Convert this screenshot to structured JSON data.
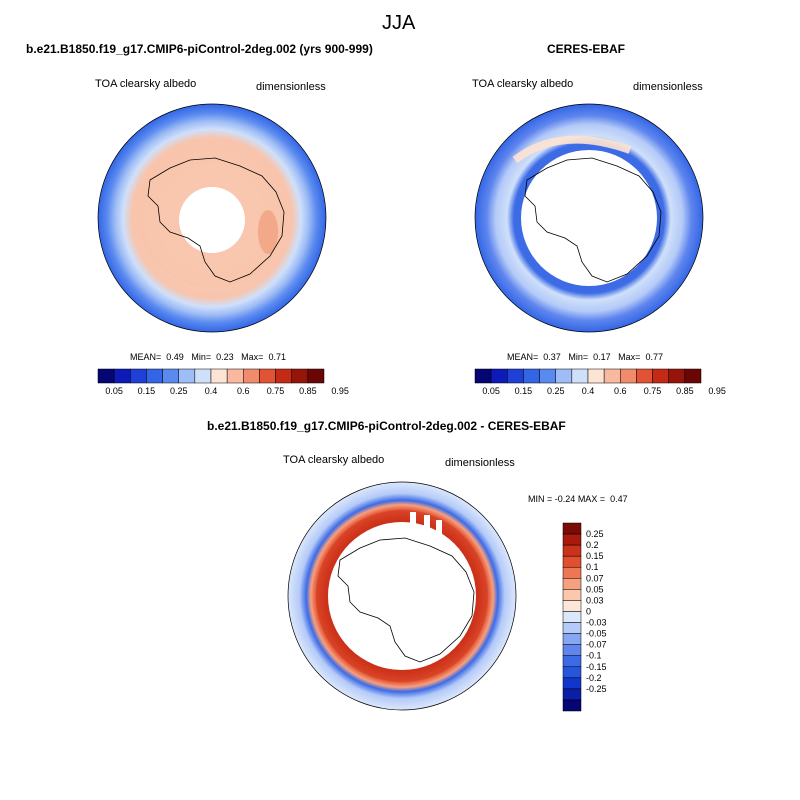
{
  "colors": {
    "cb_abs": [
      "#050573",
      "#0d1ab8",
      "#1f3fd6",
      "#3366e6",
      "#5a8af0",
      "#9ebcf5",
      "#cfe0fa",
      "#fde3d2",
      "#f8b9a0",
      "#f08b6b",
      "#e25234",
      "#c42a15",
      "#96150a",
      "#6b0606"
    ],
    "cb_diff": [
      "#050573",
      "#0a1ea8",
      "#1036cc",
      "#2655df",
      "#3d6be6",
      "#5f86ee",
      "#86a6f3",
      "#b4caf8",
      "#dbe7fb",
      "#fde6d8",
      "#fbc7ad",
      "#f6a080",
      "#ee7652",
      "#e14f2e",
      "#cc321a",
      "#a71a0c",
      "#7b0c05"
    ]
  },
  "page": {
    "season_title": "JJA"
  },
  "chart_data": [
    {
      "type": "heatmap",
      "projection": "south-polar-stereographic",
      "title": "b.e21.B1850.f19_g17.CMIP6-piControl-2deg.002 (yrs 900-999)",
      "left_label": "TOA clearsky albedo",
      "right_label": "dimensionless",
      "stats": {
        "mean_label": "MEAN=",
        "mean": "0.49",
        "min_label": "Min=",
        "min": "0.23",
        "max_label": "Max=",
        "max": "0.71"
      },
      "colorbar_labels": [
        "0.05",
        "0.15",
        "0.25",
        "0.4",
        "0.6",
        "0.75",
        "0.85",
        "0.95"
      ],
      "field_rings": [
        {
          "r_fraction": 1.0,
          "value": 0.2
        },
        {
          "r_fraction": 0.87,
          "value": 0.3
        },
        {
          "r_fraction": 0.77,
          "value": 0.45
        },
        {
          "r_fraction": 0.72,
          "value": 0.58
        },
        {
          "r_fraction": 0.4,
          "value": "missing"
        }
      ]
    },
    {
      "type": "heatmap",
      "projection": "south-polar-stereographic",
      "title": "CERES-EBAF",
      "left_label": "TOA clearsky albedo",
      "right_label": "dimensionless",
      "stats": {
        "mean_label": "MEAN=",
        "mean": "0.37",
        "min_label": "Min=",
        "min": "0.17",
        "max_label": "Max=",
        "max": "0.77"
      },
      "colorbar_labels": [
        "0.05",
        "0.15",
        "0.25",
        "0.4",
        "0.6",
        "0.75",
        "0.85",
        "0.95"
      ],
      "field_rings": [
        {
          "r_fraction": 1.0,
          "value": 0.25
        },
        {
          "r_fraction": 0.87,
          "value": 0.3
        },
        {
          "r_fraction": 0.75,
          "value": 0.35
        },
        {
          "r_fraction": 0.66,
          "value": 0.2
        },
        {
          "r_fraction": 0.62,
          "value": "missing"
        }
      ]
    },
    {
      "type": "heatmap",
      "projection": "south-polar-stereographic",
      "title": "b.e21.B1850.f19_g17.CMIP6-piControl-2deg.002 - CERES-EBAF",
      "left_label": "TOA clearsky albedo",
      "right_label": "dimensionless",
      "stats": {
        "min_label": "MIN =",
        "min": "-0.24",
        "max_label": "MAX =",
        "max": "0.47"
      },
      "colorbar_labels": [
        "0.25",
        "0.2",
        "0.15",
        "0.1",
        "0.07",
        "0.05",
        "0.03",
        "0",
        "-0.03",
        "-0.05",
        "-0.07",
        "-0.1",
        "-0.15",
        "-0.2",
        "-0.25"
      ],
      "field_rings": [
        {
          "r_fraction": 1.0,
          "value": -0.02
        },
        {
          "r_fraction": 0.83,
          "value": -0.06
        },
        {
          "r_fraction": 0.78,
          "value": 0.1
        },
        {
          "r_fraction": 0.72,
          "value": 0.2
        },
        {
          "r_fraction": 0.64,
          "value": "missing"
        }
      ]
    }
  ]
}
